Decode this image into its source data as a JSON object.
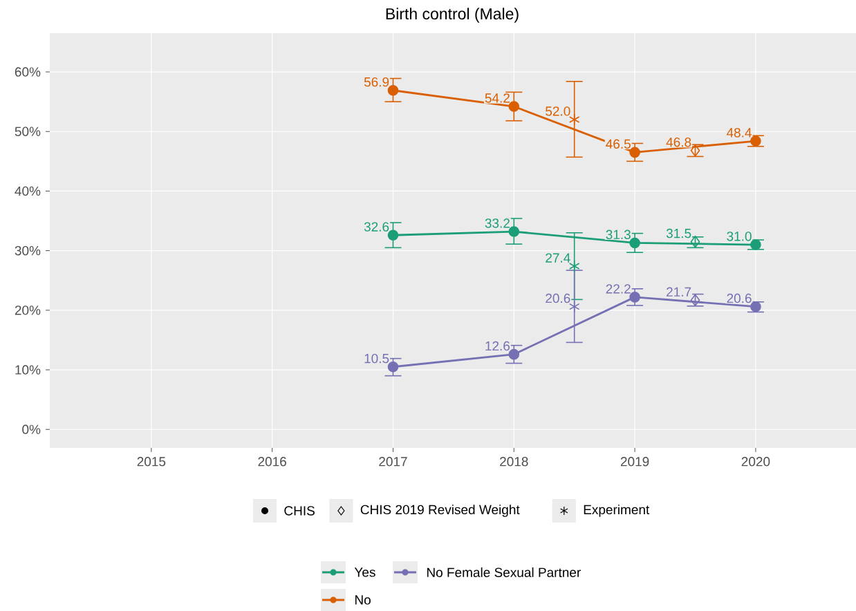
{
  "chart_data": {
    "type": "line",
    "title": "Birth control (Male)",
    "xlim": [
      2014.16,
      2020.83
    ],
    "ylim": [
      -3.1,
      66.5
    ],
    "xticks": [
      {
        "value": 2015,
        "label": "2015"
      },
      {
        "value": 2016,
        "label": "2016"
      },
      {
        "value": 2017,
        "label": "2017"
      },
      {
        "value": 2018,
        "label": "2018"
      },
      {
        "value": 2019,
        "label": "2019"
      },
      {
        "value": 2020,
        "label": "2020"
      }
    ],
    "yticks": [
      {
        "value": 0,
        "label": "0%"
      },
      {
        "value": 10,
        "label": "10%"
      },
      {
        "value": 20,
        "label": "20%"
      },
      {
        "value": 30,
        "label": "30%"
      },
      {
        "value": 40,
        "label": "40%"
      },
      {
        "value": 50,
        "label": "50%"
      },
      {
        "value": 60,
        "label": "60%"
      }
    ],
    "grid": true,
    "legend": "bottom",
    "annotations": [
      "CHIS",
      "CHIS 2019 Revised Weight",
      "Experiment"
    ],
    "series": [
      {
        "name": "Yes",
        "color": "#1b9e77",
        "marker": "circle",
        "x": [
          2017,
          2018,
          2019,
          2020
        ],
        "values": [
          32.6,
          33.2,
          31.3,
          31.0
        ],
        "errors": [
          [
            30.5,
            34.7
          ],
          [
            31.1,
            35.4
          ],
          [
            29.7,
            32.9
          ],
          [
            30.2,
            31.8
          ]
        ],
        "value_labels": [
          "32.6",
          "33.2",
          "31.3",
          "31.0"
        ]
      },
      {
        "name": "No",
        "color": "#d95f02",
        "marker": "circle",
        "x": [
          2017,
          2018,
          2019,
          2020
        ],
        "values": [
          56.9,
          54.2,
          46.5,
          48.4
        ],
        "errors": [
          [
            55.0,
            58.9
          ],
          [
            51.8,
            56.6
          ],
          [
            45.0,
            48.0
          ],
          [
            47.5,
            49.3
          ]
        ],
        "value_labels": [
          "56.9",
          "54.2",
          "46.5",
          "48.4"
        ]
      },
      {
        "name": "No Female Sexual Partner",
        "color": "#7570b3",
        "marker": "circle",
        "x": [
          2017,
          2018,
          2019,
          2020
        ],
        "values": [
          10.5,
          12.6,
          22.2,
          20.6
        ],
        "errors": [
          [
            9.0,
            11.9
          ],
          [
            11.1,
            14.1
          ],
          [
            20.8,
            23.6
          ],
          [
            19.7,
            21.4
          ]
        ],
        "value_labels": [
          "10.5",
          "12.6",
          "22.2",
          "20.6"
        ]
      },
      {
        "color": "#1b9e77",
        "type": "scatter",
        "marker": "diamond",
        "x": [
          2019.5
        ],
        "values": [
          31.5
        ],
        "errors": [
          [
            30.5,
            32.3
          ]
        ],
        "value_labels": [
          "31.5"
        ]
      },
      {
        "color": "#d95f02",
        "type": "scatter",
        "marker": "diamond",
        "x": [
          2019.5
        ],
        "values": [
          46.8
        ],
        "errors": [
          [
            45.8,
            47.8
          ]
        ],
        "value_labels": [
          "46.8"
        ]
      },
      {
        "color": "#7570b3",
        "type": "scatter",
        "marker": "diamond",
        "x": [
          2019.5
        ],
        "values": [
          21.7
        ],
        "errors": [
          [
            20.7,
            22.7
          ]
        ],
        "value_labels": [
          "21.7"
        ]
      },
      {
        "color": "#1b9e77",
        "type": "scatter",
        "marker": "cross",
        "x": [
          2018.5
        ],
        "values": [
          27.4
        ],
        "errors": [
          [
            21.8,
            33.0
          ]
        ],
        "value_labels": [
          "27.4"
        ]
      },
      {
        "color": "#d95f02",
        "type": "scatter",
        "marker": "cross",
        "x": [
          2018.5
        ],
        "values": [
          52.0
        ],
        "errors": [
          [
            45.7,
            58.4
          ]
        ],
        "value_labels": [
          "52.0"
        ]
      },
      {
        "color": "#7570b3",
        "type": "scatter",
        "marker": "cross",
        "x": [
          2018.5
        ],
        "values": [
          20.6
        ],
        "errors": [
          [
            14.6,
            26.7
          ]
        ],
        "value_labels": [
          "20.6"
        ]
      }
    ]
  }
}
